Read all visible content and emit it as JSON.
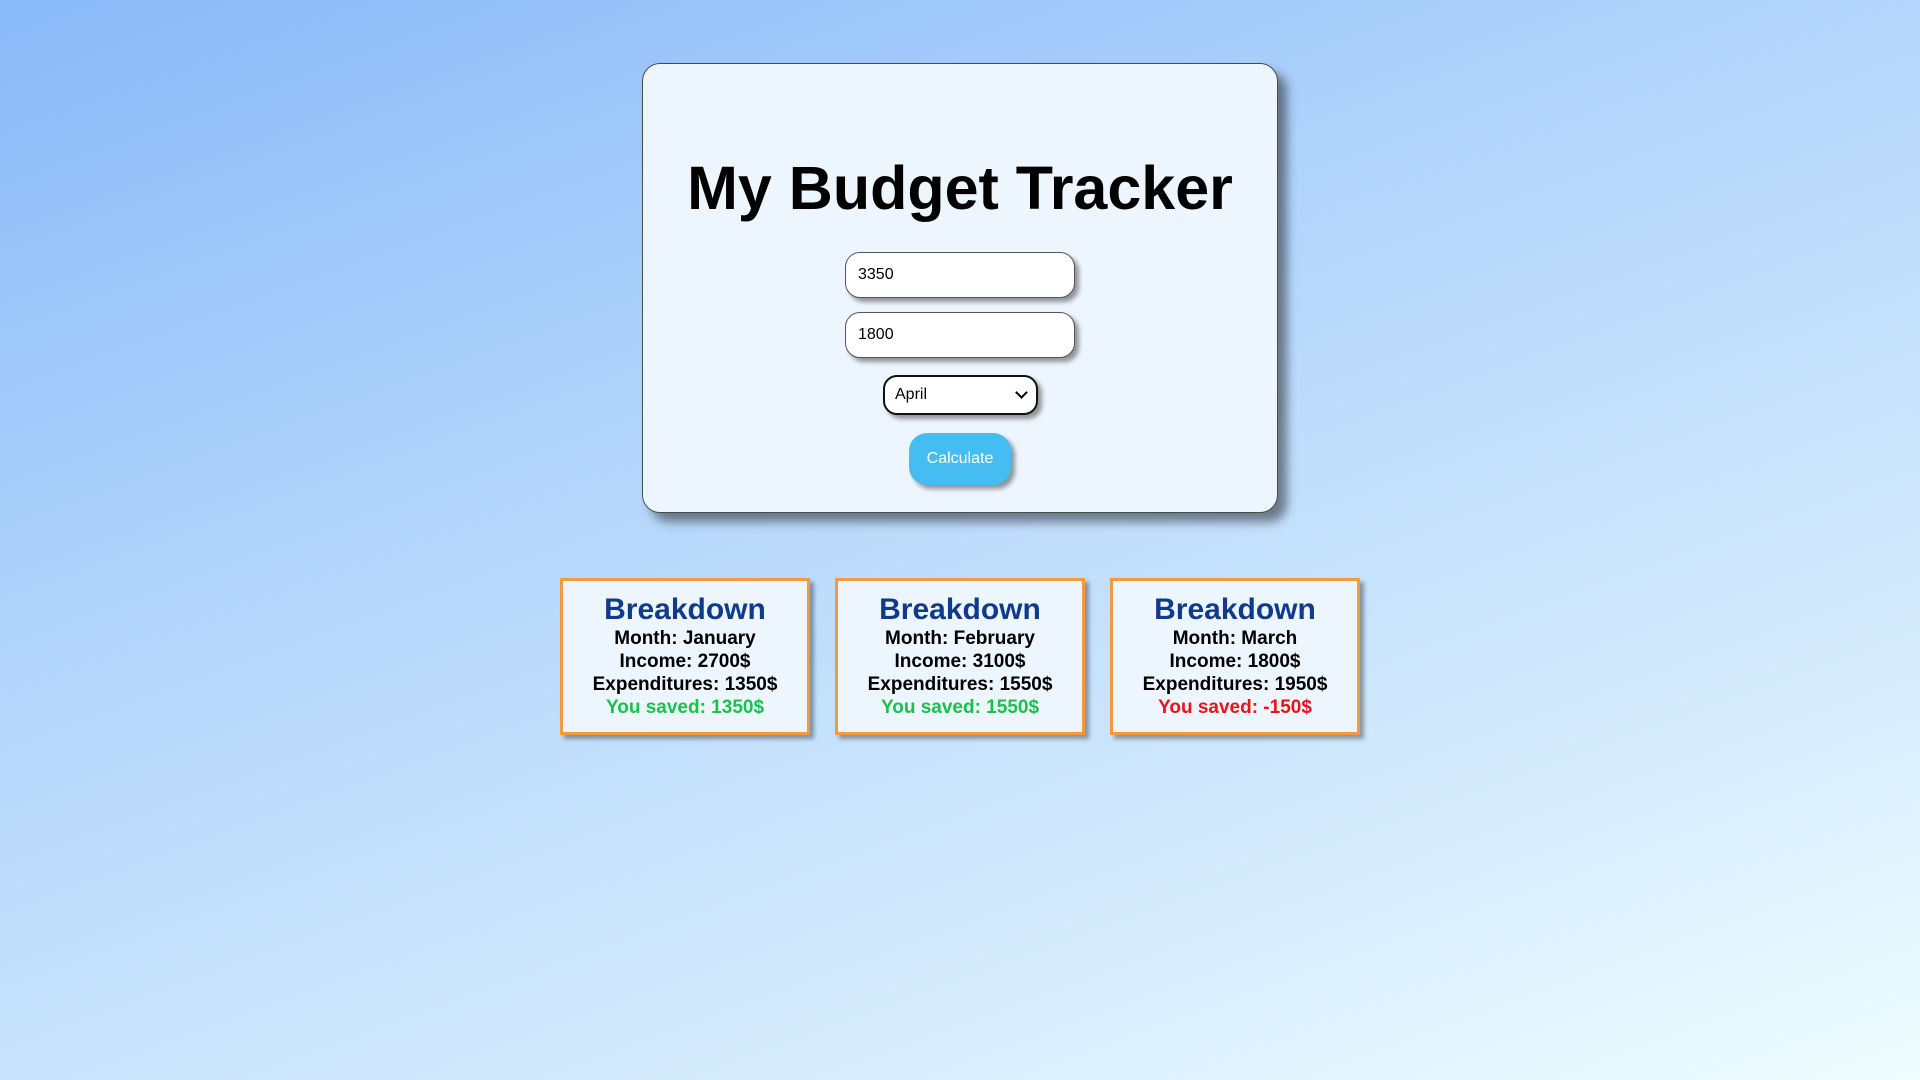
{
  "app": {
    "title": "My Budget Tracker"
  },
  "form": {
    "income_value": "3350",
    "expenditures_value": "1800",
    "month_selected": "April",
    "calculate_label": "Calculate"
  },
  "breakdowns": [
    {
      "title": "Breakdown",
      "month": "Month: January",
      "income": "Income: 2700$",
      "expenditures": "Expenditures: 1350$",
      "saved": "You saved: 1350$",
      "saved_status": "positive"
    },
    {
      "title": "Breakdown",
      "month": "Month: February",
      "income": "Income: 3100$",
      "expenditures": "Expenditures: 1550$",
      "saved": "You saved: 1550$",
      "saved_status": "positive"
    },
    {
      "title": "Breakdown",
      "month": "Month: March",
      "income": "Income: 1800$",
      "expenditures": "Expenditures: 1950$",
      "saved": "You saved: -150$",
      "saved_status": "negative"
    }
  ],
  "colors": {
    "card_background": "#edf5fe",
    "button": "#45bdf0",
    "breakdown_border": "#f3993f",
    "breakdown_title": "#103a8c",
    "saved_positive": "#19c24a",
    "saved_negative": "#e8141c"
  }
}
